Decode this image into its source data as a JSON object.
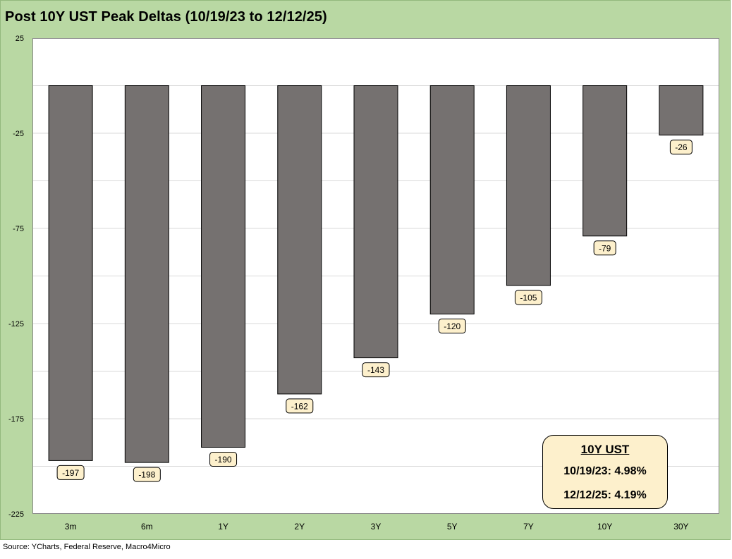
{
  "chart_data": {
    "type": "bar",
    "title": "Post 10Y UST Peak Deltas (10/19/23 to 12/12/25)",
    "categories": [
      "3m",
      "6m",
      "1Y",
      "2Y",
      "3Y",
      "5Y",
      "7Y",
      "10Y",
      "30Y"
    ],
    "values": [
      -197,
      -198,
      -190,
      -162,
      -143,
      -120,
      -105,
      -79,
      -26
    ],
    "data_labels": [
      "-197",
      "-198",
      "-190",
      "-162",
      "-143",
      "-120",
      "-105",
      "-79",
      "-26"
    ],
    "ylim": [
      -225,
      25
    ],
    "yticks": [
      25,
      -25,
      -75,
      -125,
      -175,
      -225
    ],
    "ytick_labels": [
      "25",
      "-25",
      "-75",
      "-125",
      "-175",
      "-225"
    ],
    "xlabel": "",
    "ylabel": "",
    "grid": true,
    "legend": "none",
    "colors": {
      "bar_fill": "#757170",
      "bar_stroke": "#000000",
      "label_fill": "#fdf0cc",
      "frame_bg": "#b9d8a3",
      "grid": "#d9d9d9"
    }
  },
  "annotation": {
    "title": "10Y UST",
    "line1": "10/19/23:  4.98%",
    "line2": "12/12/25:  4.19%"
  },
  "source": "Source: YCharts, Federal Reserve, Macro4Micro"
}
